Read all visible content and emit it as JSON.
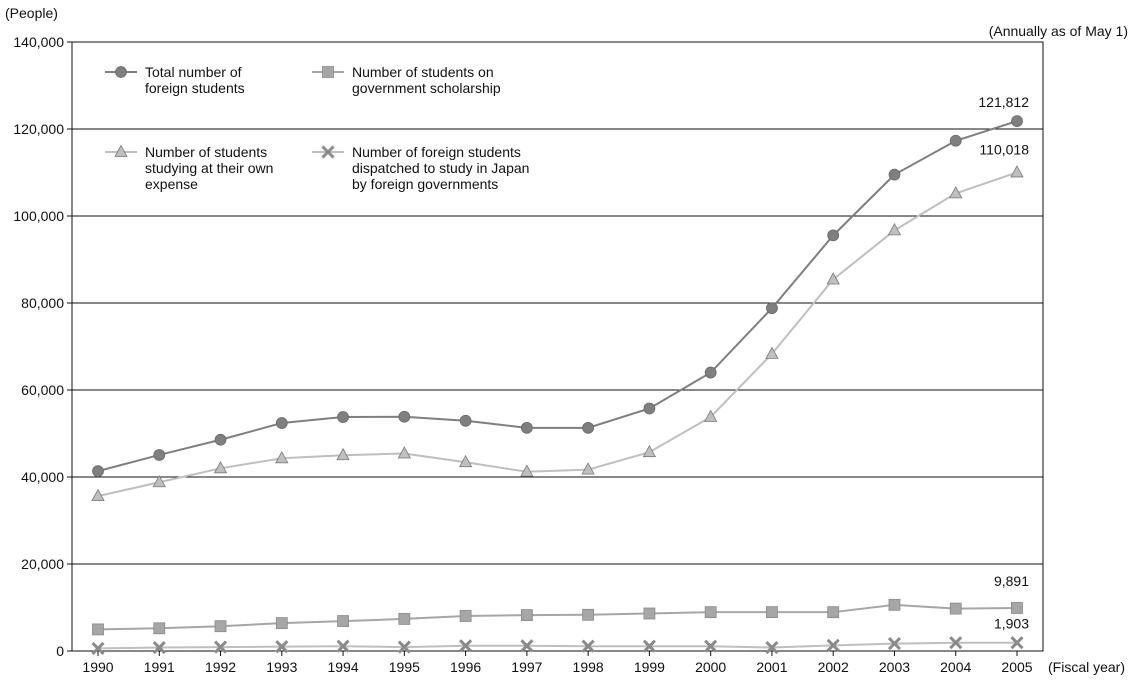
{
  "chart_data": {
    "type": "line",
    "ylabel": "(People)",
    "xlabel": "(Fiscal year)",
    "note": "(Annually as of May 1)",
    "ylim": [
      0,
      140000
    ],
    "yticks": [
      0,
      20000,
      40000,
      60000,
      80000,
      100000,
      120000,
      140000
    ],
    "ytick_labels": [
      "0",
      "20,000",
      "40,000",
      "60,000",
      "80,000",
      "100,000",
      "120,000",
      "140,000"
    ],
    "grid": "horizontal",
    "legend_position": "top-left",
    "x": [
      "1990",
      "1991",
      "1992",
      "1993",
      "1994",
      "1995",
      "1996",
      "1997",
      "1998",
      "1999",
      "2000",
      "2001",
      "2002",
      "2003",
      "2004",
      "2005"
    ],
    "series": [
      {
        "name_lines": [
          "Total number of",
          "foreign students"
        ],
        "marker": "circle",
        "color": "#7f7f7f",
        "values": [
          41347,
          45066,
          48561,
          52405,
          53787,
          53847,
          52921,
          51298,
          51298,
          55755,
          64011,
          78812,
          95550,
          109508,
          117302,
          121812
        ],
        "end_label": "121,812"
      },
      {
        "name_lines": [
          "Number of students on",
          "government scholarship"
        ],
        "marker": "square",
        "color": "#a6a6a6",
        "values": [
          4961,
          5219,
          5699,
          6408,
          6880,
          7371,
          8051,
          8250,
          8323,
          8620,
          8930,
          8931,
          8923,
          10614,
          9746,
          9891
        ],
        "end_label": "9,891"
      },
      {
        "name_lines": [
          "Number of students",
          "studying at their own",
          "expense"
        ],
        "marker": "triangle",
        "color": "#bfbfbf",
        "values": [
          35600,
          38800,
          42000,
          44300,
          45000,
          45400,
          43400,
          41200,
          41700,
          45700,
          53800,
          68300,
          85400,
          96700,
          105200,
          110018
        ],
        "end_label": "110,018"
      },
      {
        "name_lines": [
          "Number of foreign students",
          "dispatched to study in Japan",
          "by foreign governments"
        ],
        "marker": "x",
        "color": "#bfbfbf",
        "values": [
          600,
          800,
          900,
          1000,
          1100,
          900,
          1200,
          1200,
          1100,
          1100,
          1100,
          800,
          1300,
          1700,
          1900,
          1903
        ],
        "end_label": "1,903"
      }
    ]
  }
}
